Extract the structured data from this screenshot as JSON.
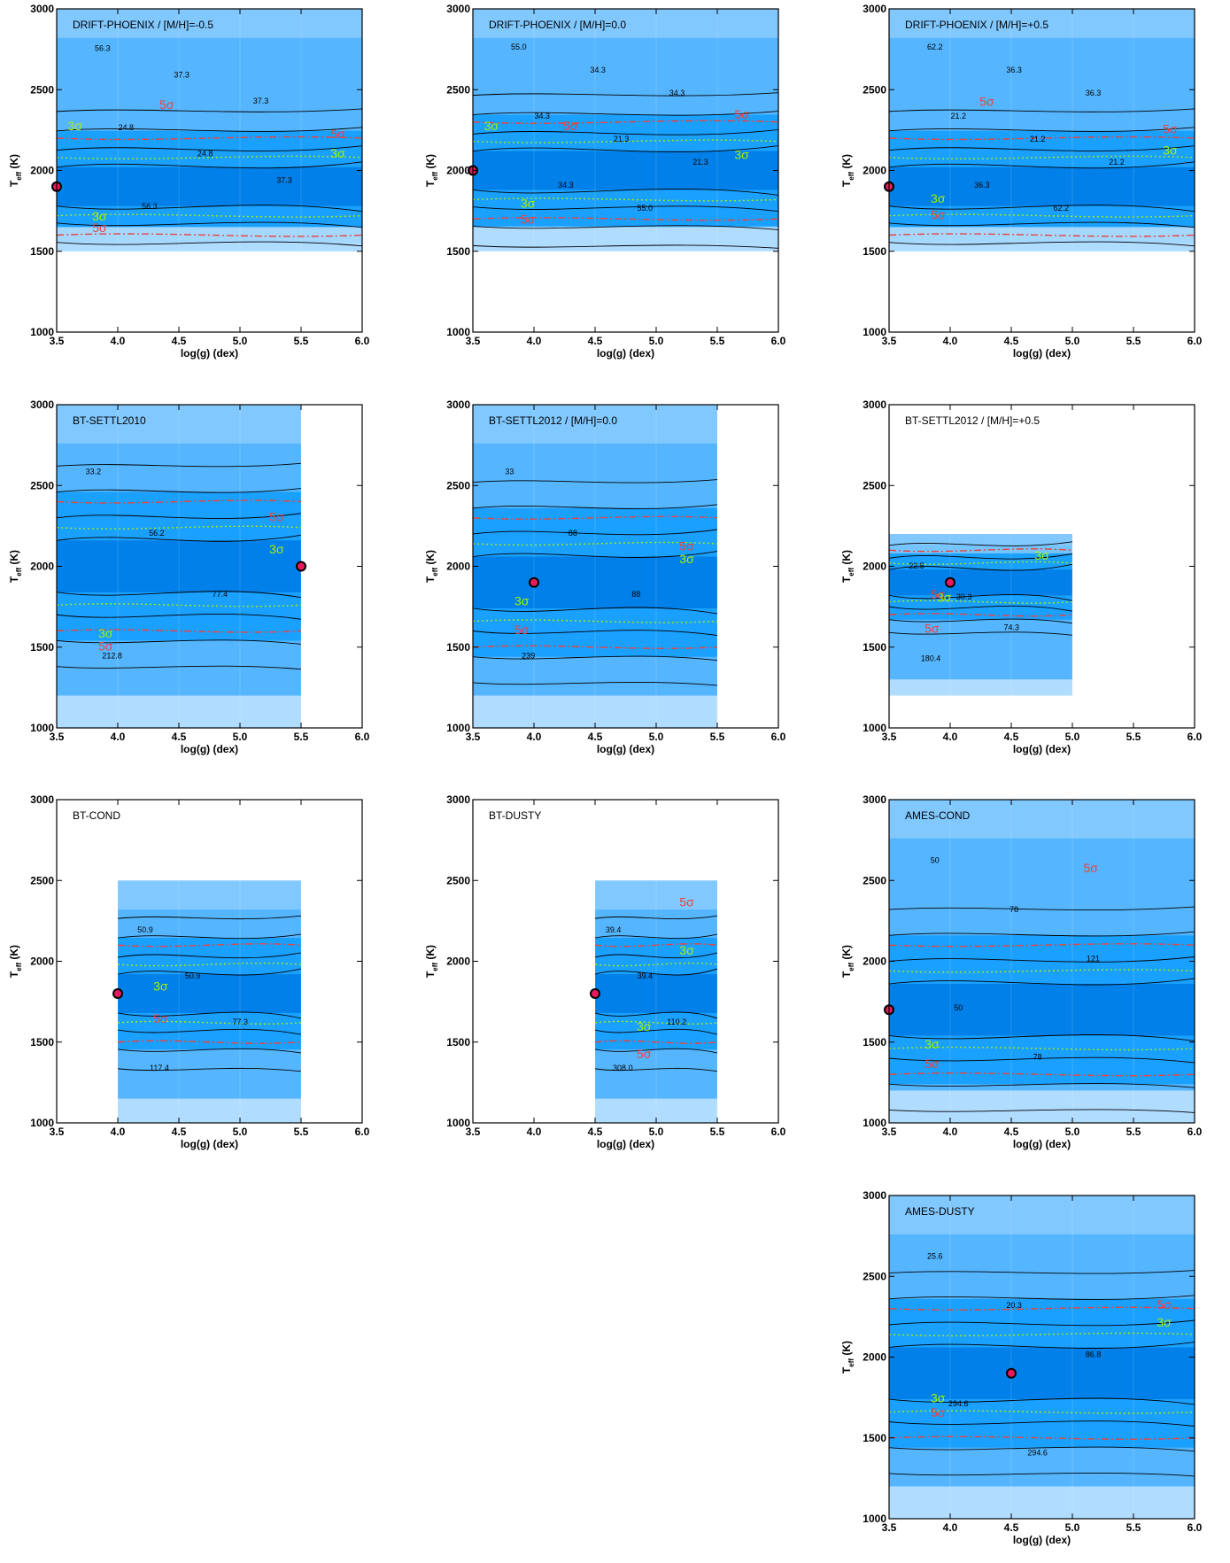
{
  "axes": {
    "xlabel": "log(g) (dex)",
    "ylabel_main": "T",
    "ylabel_sub": "eff",
    "ylabel_unit": " (K)",
    "xticks": [
      "3.5",
      "4.0",
      "4.5",
      "5.0",
      "5.5",
      "6.0"
    ],
    "yticks": [
      "1000",
      "1500",
      "2000",
      "2500",
      "3000"
    ],
    "xlim": [
      3.5,
      6.0
    ],
    "ylim": [
      1000,
      3000
    ]
  },
  "colors": {
    "level1": "#0080e8",
    "level2": "#1aa0ff",
    "level3": "#55b6ff",
    "level4": "#8ccdff",
    "level5": "#c7e6ff",
    "sigma3": "#a8f000",
    "sigma5": "#e8443a",
    "marker_fill": "#e8185c"
  },
  "chart_data": [
    {
      "type": "heatmap",
      "title": "DRIFT-PHOENIX / [M/H]=-0.5",
      "grid": {
        "x": [
          3.5,
          6.0
        ],
        "y": [
          1500,
          3000
        ]
      },
      "best_fit": {
        "x": 3.5,
        "y": 1900
      },
      "contour_labels": [
        "56.3",
        "37.3",
        "37.3",
        "24.8",
        "24.8",
        "37.3",
        "56.3"
      ],
      "sigma_labels": [
        {
          "t": "5σ",
          "x": 4.4,
          "y": 2380,
          "s": "5"
        },
        {
          "t": "5σ",
          "x": 5.8,
          "y": 2200,
          "s": "5"
        },
        {
          "t": "3σ",
          "x": 3.65,
          "y": 2250,
          "s": "3"
        },
        {
          "t": "3σ",
          "x": 5.8,
          "y": 2080,
          "s": "3"
        },
        {
          "t": "3σ",
          "x": 3.85,
          "y": 1690,
          "s": "3"
        },
        {
          "t": "5σ",
          "x": 3.85,
          "y": 1620,
          "s": "5"
        }
      ]
    },
    {
      "type": "heatmap",
      "title": "DRIFT-PHOENIX / [M/H]=0.0",
      "grid": {
        "x": [
          3.5,
          6.0
        ],
        "y": [
          1500,
          3000
        ]
      },
      "best_fit": {
        "x": 3.5,
        "y": 2000
      },
      "contour_labels": [
        "55.0",
        "34.3",
        "34.3",
        "34.3",
        "21.3",
        "21.3",
        "34.3",
        "55.0"
      ],
      "sigma_labels": [
        {
          "t": "5σ",
          "x": 5.7,
          "y": 2320,
          "s": "5"
        },
        {
          "t": "5σ",
          "x": 4.3,
          "y": 2250,
          "s": "5"
        },
        {
          "t": "3σ",
          "x": 3.65,
          "y": 2250,
          "s": "3"
        },
        {
          "t": "3σ",
          "x": 5.7,
          "y": 2070,
          "s": "3"
        },
        {
          "t": "3σ",
          "x": 3.95,
          "y": 1770,
          "s": "3"
        },
        {
          "t": "5σ",
          "x": 3.95,
          "y": 1670,
          "s": "5"
        }
      ]
    },
    {
      "type": "heatmap",
      "title": "DRIFT-PHOENIX / [M/H]=+0.5",
      "grid": {
        "x": [
          3.5,
          6.0
        ],
        "y": [
          1500,
          3000
        ]
      },
      "best_fit": {
        "x": 3.5,
        "y": 1900
      },
      "contour_labels": [
        "62.2",
        "36.3",
        "36.3",
        "21.2",
        "21.2",
        "21.2",
        "36.3",
        "62.2"
      ],
      "sigma_labels": [
        {
          "t": "5σ",
          "x": 4.3,
          "y": 2400,
          "s": "5"
        },
        {
          "t": "5σ",
          "x": 5.8,
          "y": 2230,
          "s": "5"
        },
        {
          "t": "3σ",
          "x": 5.8,
          "y": 2100,
          "s": "3"
        },
        {
          "t": "3σ",
          "x": 3.9,
          "y": 1800,
          "s": "3"
        },
        {
          "t": "5σ",
          "x": 3.9,
          "y": 1700,
          "s": "5"
        }
      ]
    },
    {
      "type": "heatmap",
      "title": "BT-SETTL2010",
      "grid": {
        "x": [
          3.5,
          5.5
        ],
        "y": [
          1000,
          3000
        ]
      },
      "best_fit": {
        "x": 5.5,
        "y": 2000
      },
      "contour_labels": [
        "33.2",
        "56.2",
        "77.4",
        "212.8"
      ],
      "sigma_labels": [
        {
          "t": "5σ",
          "x": 5.3,
          "y": 2280,
          "s": "5"
        },
        {
          "t": "3σ",
          "x": 5.3,
          "y": 2080,
          "s": "3"
        },
        {
          "t": "3σ",
          "x": 3.9,
          "y": 1560,
          "s": "3"
        },
        {
          "t": "5σ",
          "x": 3.9,
          "y": 1480,
          "s": "5"
        }
      ]
    },
    {
      "type": "heatmap",
      "title": "BT-SETTL2012 / [M/H]=0.0",
      "grid": {
        "x": [
          3.5,
          5.5
        ],
        "y": [
          1000,
          3000
        ]
      },
      "best_fit": {
        "x": 4.0,
        "y": 1900
      },
      "contour_labels": [
        "33",
        "88",
        "88",
        "239"
      ],
      "sigma_labels": [
        {
          "t": "5σ",
          "x": 5.25,
          "y": 2100,
          "s": "5"
        },
        {
          "t": "3σ",
          "x": 5.25,
          "y": 2020,
          "s": "3"
        },
        {
          "t": "3σ",
          "x": 3.9,
          "y": 1760,
          "s": "3"
        },
        {
          "t": "5σ",
          "x": 3.9,
          "y": 1580,
          "s": "5"
        }
      ]
    },
    {
      "type": "heatmap",
      "title": "BT-SETTL2012 / [M/H]=+0.5",
      "grid": {
        "x": [
          3.5,
          5.0
        ],
        "y": [
          1200,
          2200
        ]
      },
      "best_fit": {
        "x": 4.0,
        "y": 1900
      },
      "contour_labels": [
        "22.5",
        "30.3",
        "74.3",
        "180.4"
      ],
      "sigma_labels": [
        {
          "t": "3σ",
          "x": 4.75,
          "y": 2040,
          "s": "3"
        },
        {
          "t": "3σ",
          "x": 3.95,
          "y": 1780,
          "s": "3"
        },
        {
          "t": "5σ",
          "x": 3.85,
          "y": 1590,
          "s": "5"
        },
        {
          "t": "5σ",
          "x": 3.9,
          "y": 1800,
          "s": "5"
        }
      ]
    },
    {
      "type": "heatmap",
      "title": "BT-COND",
      "grid": {
        "x": [
          4.0,
          5.5
        ],
        "y": [
          1000,
          2500
        ]
      },
      "best_fit": {
        "x": 4.0,
        "y": 1800
      },
      "contour_labels": [
        "50.9",
        "50.9",
        "77.3",
        "117.4"
      ],
      "sigma_labels": [
        {
          "t": "3σ",
          "x": 4.35,
          "y": 1820,
          "s": "3"
        },
        {
          "t": "5σ",
          "x": 4.35,
          "y": 1620,
          "s": "5"
        }
      ]
    },
    {
      "type": "heatmap",
      "title": "BT-DUSTY",
      "grid": {
        "x": [
          4.5,
          5.5
        ],
        "y": [
          1000,
          2500
        ]
      },
      "best_fit": {
        "x": 4.5,
        "y": 1800
      },
      "contour_labels": [
        "39.4",
        "39.4",
        "110.2",
        "308.0"
      ],
      "sigma_labels": [
        {
          "t": "5σ",
          "x": 5.25,
          "y": 2340,
          "s": "5"
        },
        {
          "t": "3σ",
          "x": 5.25,
          "y": 2040,
          "s": "3"
        },
        {
          "t": "3σ",
          "x": 4.9,
          "y": 1570,
          "s": "3"
        },
        {
          "t": "5σ",
          "x": 4.9,
          "y": 1400,
          "s": "5"
        }
      ]
    },
    {
      "type": "heatmap",
      "title": "AMES-COND",
      "grid": {
        "x": [
          3.5,
          6.0
        ],
        "y": [
          1000,
          3000
        ]
      },
      "best_fit": {
        "x": 3.5,
        "y": 1700
      },
      "contour_labels": [
        "50",
        "78",
        "121",
        "50",
        "78"
      ],
      "sigma_labels": [
        {
          "t": "5σ",
          "x": 5.15,
          "y": 2550,
          "s": "5"
        },
        {
          "t": "3σ",
          "x": 3.85,
          "y": 1460,
          "s": "3"
        },
        {
          "t": "5σ",
          "x": 3.85,
          "y": 1340,
          "s": "5"
        }
      ]
    },
    {
      "type": "heatmap",
      "title": "AMES-DUSTY",
      "grid": {
        "x": [
          3.5,
          6.0
        ],
        "y": [
          1000,
          3000
        ]
      },
      "best_fit": {
        "x": 4.5,
        "y": 1900
      },
      "contour_labels": [
        "25.6",
        "20.3",
        "86.8",
        "294.6",
        "294.6"
      ],
      "sigma_labels": [
        {
          "t": "5σ",
          "x": 5.75,
          "y": 2300,
          "s": "5"
        },
        {
          "t": "3σ",
          "x": 5.75,
          "y": 2190,
          "s": "3"
        },
        {
          "t": "3σ",
          "x": 3.9,
          "y": 1720,
          "s": "3"
        },
        {
          "t": "5σ",
          "x": 3.9,
          "y": 1630,
          "s": "5"
        }
      ]
    }
  ]
}
